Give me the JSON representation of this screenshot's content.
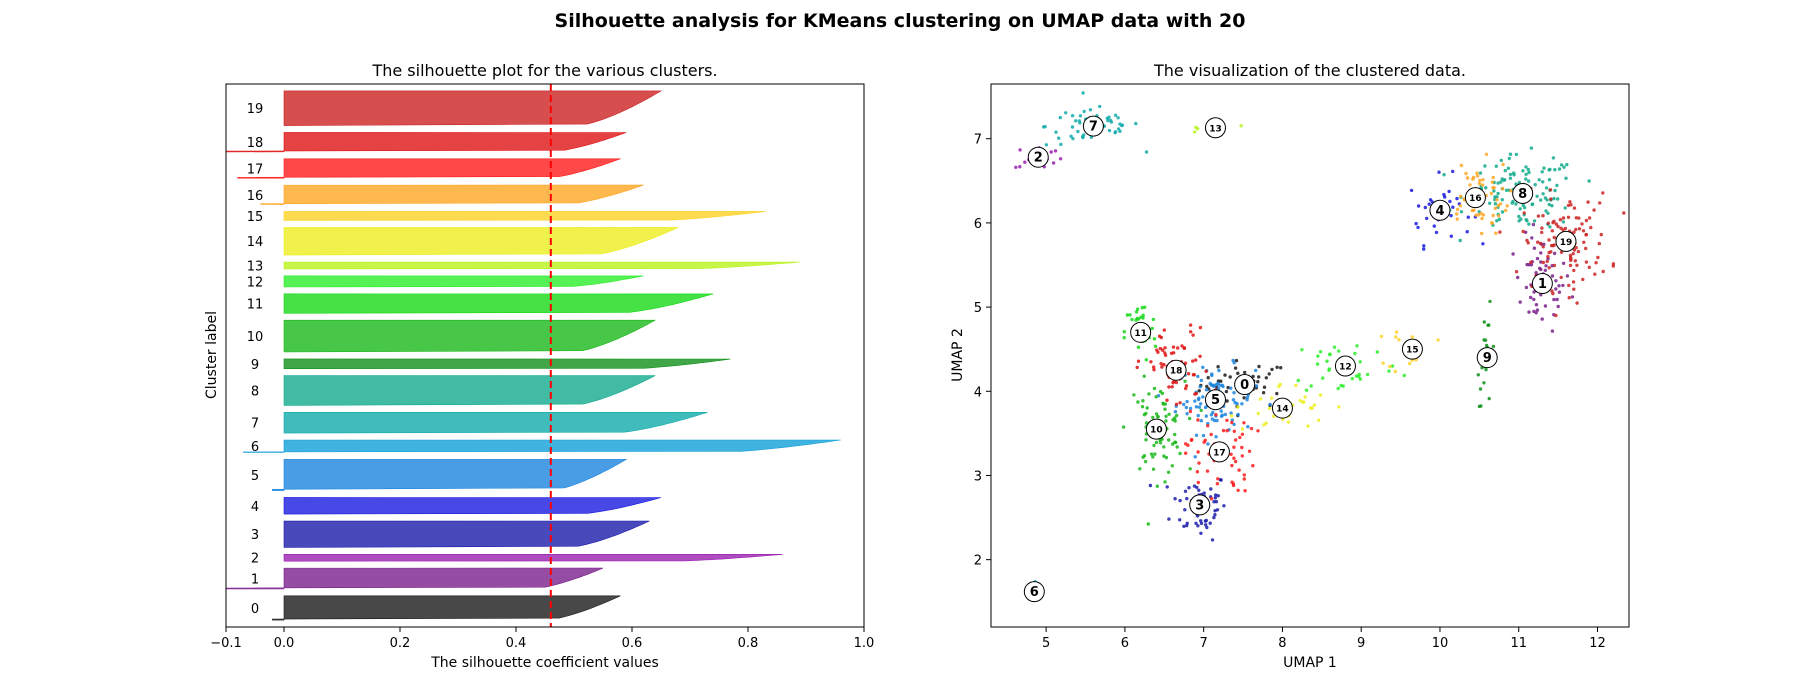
{
  "figure": {
    "suptitle": "Silhouette analysis for KMeans clustering on UMAP data with 20"
  },
  "chart_data": [
    {
      "type": "area",
      "title": "The silhouette plot for the various clusters.",
      "xlabel": "The silhouette coefficient values",
      "ylabel": "Cluster label",
      "xlim": [
        -0.1,
        1.0
      ],
      "xticks": [
        "−0.1",
        "0.0",
        "0.2",
        "0.4",
        "0.6",
        "0.8",
        "1.0"
      ],
      "xtick_values": [
        -0.1,
        0.0,
        0.2,
        0.4,
        0.6,
        0.8,
        1.0
      ],
      "average_silhouette_score": 0.46,
      "average_line_color": "#ff0000",
      "clusters": [
        {
          "label": "0",
          "min": -0.02,
          "max": 0.58,
          "size": 35,
          "color": "#1a1a1a"
        },
        {
          "label": "1",
          "min": -0.1,
          "max": 0.55,
          "size": 30,
          "color": "#7a1f8c"
        },
        {
          "label": "2",
          "min": 0.0,
          "max": 0.86,
          "size": 10,
          "color": "#9a1fb0"
        },
        {
          "label": "3",
          "min": 0.0,
          "max": 0.63,
          "size": 38,
          "color": "#1c1cab"
        },
        {
          "label": "4",
          "min": 0.0,
          "max": 0.65,
          "size": 24,
          "color": "#1a1ae0"
        },
        {
          "label": "5",
          "min": -0.02,
          "max": 0.59,
          "size": 45,
          "color": "#1a84de"
        },
        {
          "label": "6",
          "min": -0.07,
          "max": 0.96,
          "size": 18,
          "color": "#12a0d8"
        },
        {
          "label": "7",
          "min": 0.0,
          "max": 0.73,
          "size": 30,
          "color": "#12abab"
        },
        {
          "label": "8",
          "min": 0.0,
          "max": 0.64,
          "size": 43,
          "color": "#12aa8c"
        },
        {
          "label": "9",
          "min": 0.0,
          "max": 0.77,
          "size": 14,
          "color": "#10901a"
        },
        {
          "label": "10",
          "min": 0.0,
          "max": 0.64,
          "size": 46,
          "color": "#1ab81a"
        },
        {
          "label": "11",
          "min": 0.0,
          "max": 0.74,
          "size": 28,
          "color": "#16d916"
        },
        {
          "label": "12",
          "min": 0.0,
          "max": 0.62,
          "size": 16,
          "color": "#2aee2a"
        },
        {
          "label": "13",
          "min": 0.0,
          "max": 0.89,
          "size": 10,
          "color": "#b9f21a"
        },
        {
          "label": "14",
          "min": 0.0,
          "max": 0.68,
          "size": 40,
          "color": "#eeee1e"
        },
        {
          "label": "15",
          "min": 0.0,
          "max": 0.83,
          "size": 13,
          "color": "#fdd224"
        },
        {
          "label": "16",
          "min": -0.04,
          "max": 0.62,
          "size": 28,
          "color": "#ffa622"
        },
        {
          "label": "17",
          "min": -0.08,
          "max": 0.58,
          "size": 28,
          "color": "#ff1a1a"
        },
        {
          "label": "18",
          "min": -0.1,
          "max": 0.59,
          "size": 28,
          "color": "#df1414"
        },
        {
          "label": "19",
          "min": 0.0,
          "max": 0.65,
          "size": 50,
          "color": "#cc2222"
        }
      ]
    },
    {
      "type": "scatter",
      "title": "The visualization of the clustered data.",
      "xlabel": "UMAP 1",
      "ylabel": "UMAP 2",
      "xlim": [
        4.3,
        12.4
      ],
      "ylim": [
        1.2,
        7.65
      ],
      "xticks": [
        5,
        6,
        7,
        8,
        9,
        10,
        11,
        12
      ],
      "yticks": [
        2,
        3,
        4,
        5,
        6,
        7
      ],
      "clusters": [
        {
          "label": "0",
          "color": "#1a1a1a",
          "x": 7.52,
          "y": 4.08,
          "sx": 0.28,
          "sy": 0.14,
          "n": 45
        },
        {
          "label": "1",
          "color": "#7a1f8c",
          "x": 11.3,
          "y": 5.28,
          "sx": 0.18,
          "sy": 0.28,
          "n": 55
        },
        {
          "label": "2",
          "color": "#9a1fb0",
          "x": 4.9,
          "y": 6.78,
          "sx": 0.15,
          "sy": 0.08,
          "n": 18
        },
        {
          "label": "3",
          "color": "#1c1cab",
          "x": 6.95,
          "y": 2.65,
          "sx": 0.18,
          "sy": 0.2,
          "n": 60
        },
        {
          "label": "4",
          "color": "#1a1ae0",
          "x": 10.0,
          "y": 6.15,
          "sx": 0.2,
          "sy": 0.2,
          "n": 35
        },
        {
          "label": "5",
          "color": "#1a84de",
          "x": 7.15,
          "y": 3.9,
          "sx": 0.25,
          "sy": 0.2,
          "n": 90
        },
        {
          "label": "6",
          "color": "#12a0d8",
          "x": 4.85,
          "y": 1.62,
          "sx": 0.04,
          "sy": 0.05,
          "n": 10
        },
        {
          "label": "7",
          "color": "#12abab",
          "x": 5.6,
          "y": 7.15,
          "sx": 0.3,
          "sy": 0.12,
          "n": 55
        },
        {
          "label": "8",
          "color": "#12aa8c",
          "x": 11.05,
          "y": 6.35,
          "sx": 0.35,
          "sy": 0.22,
          "n": 120
        },
        {
          "label": "9",
          "color": "#10901a",
          "x": 10.6,
          "y": 4.4,
          "sx": 0.06,
          "sy": 0.28,
          "n": 20
        },
        {
          "label": "10",
          "color": "#1ab81a",
          "x": 6.4,
          "y": 3.55,
          "sx": 0.18,
          "sy": 0.28,
          "n": 75
        },
        {
          "label": "11",
          "color": "#16d916",
          "x": 6.2,
          "y": 4.7,
          "sx": 0.1,
          "sy": 0.18,
          "n": 40
        },
        {
          "label": "12",
          "color": "#2aee2a",
          "x": 8.8,
          "y": 4.3,
          "sx": 0.35,
          "sy": 0.18,
          "n": 35
        },
        {
          "label": "13",
          "color": "#b9f21a",
          "x": 7.15,
          "y": 7.13,
          "sx": 0.22,
          "sy": 0.03,
          "n": 14
        },
        {
          "label": "14",
          "color": "#eeee1e",
          "x": 8.0,
          "y": 3.8,
          "sx": 0.3,
          "sy": 0.15,
          "n": 35
        },
        {
          "label": "15",
          "color": "#fdd224",
          "x": 9.65,
          "y": 4.5,
          "sx": 0.15,
          "sy": 0.14,
          "n": 14
        },
        {
          "label": "16",
          "color": "#ffa622",
          "x": 10.45,
          "y": 6.3,
          "sx": 0.22,
          "sy": 0.22,
          "n": 55
        },
        {
          "label": "17",
          "color": "#ff1a1a",
          "x": 7.2,
          "y": 3.28,
          "sx": 0.22,
          "sy": 0.25,
          "n": 60
        },
        {
          "label": "18",
          "color": "#df1414",
          "x": 6.65,
          "y": 4.25,
          "sx": 0.22,
          "sy": 0.25,
          "n": 70
        },
        {
          "label": "19",
          "color": "#cc2222",
          "x": 11.6,
          "y": 5.78,
          "sx": 0.28,
          "sy": 0.28,
          "n": 110
        }
      ]
    }
  ]
}
